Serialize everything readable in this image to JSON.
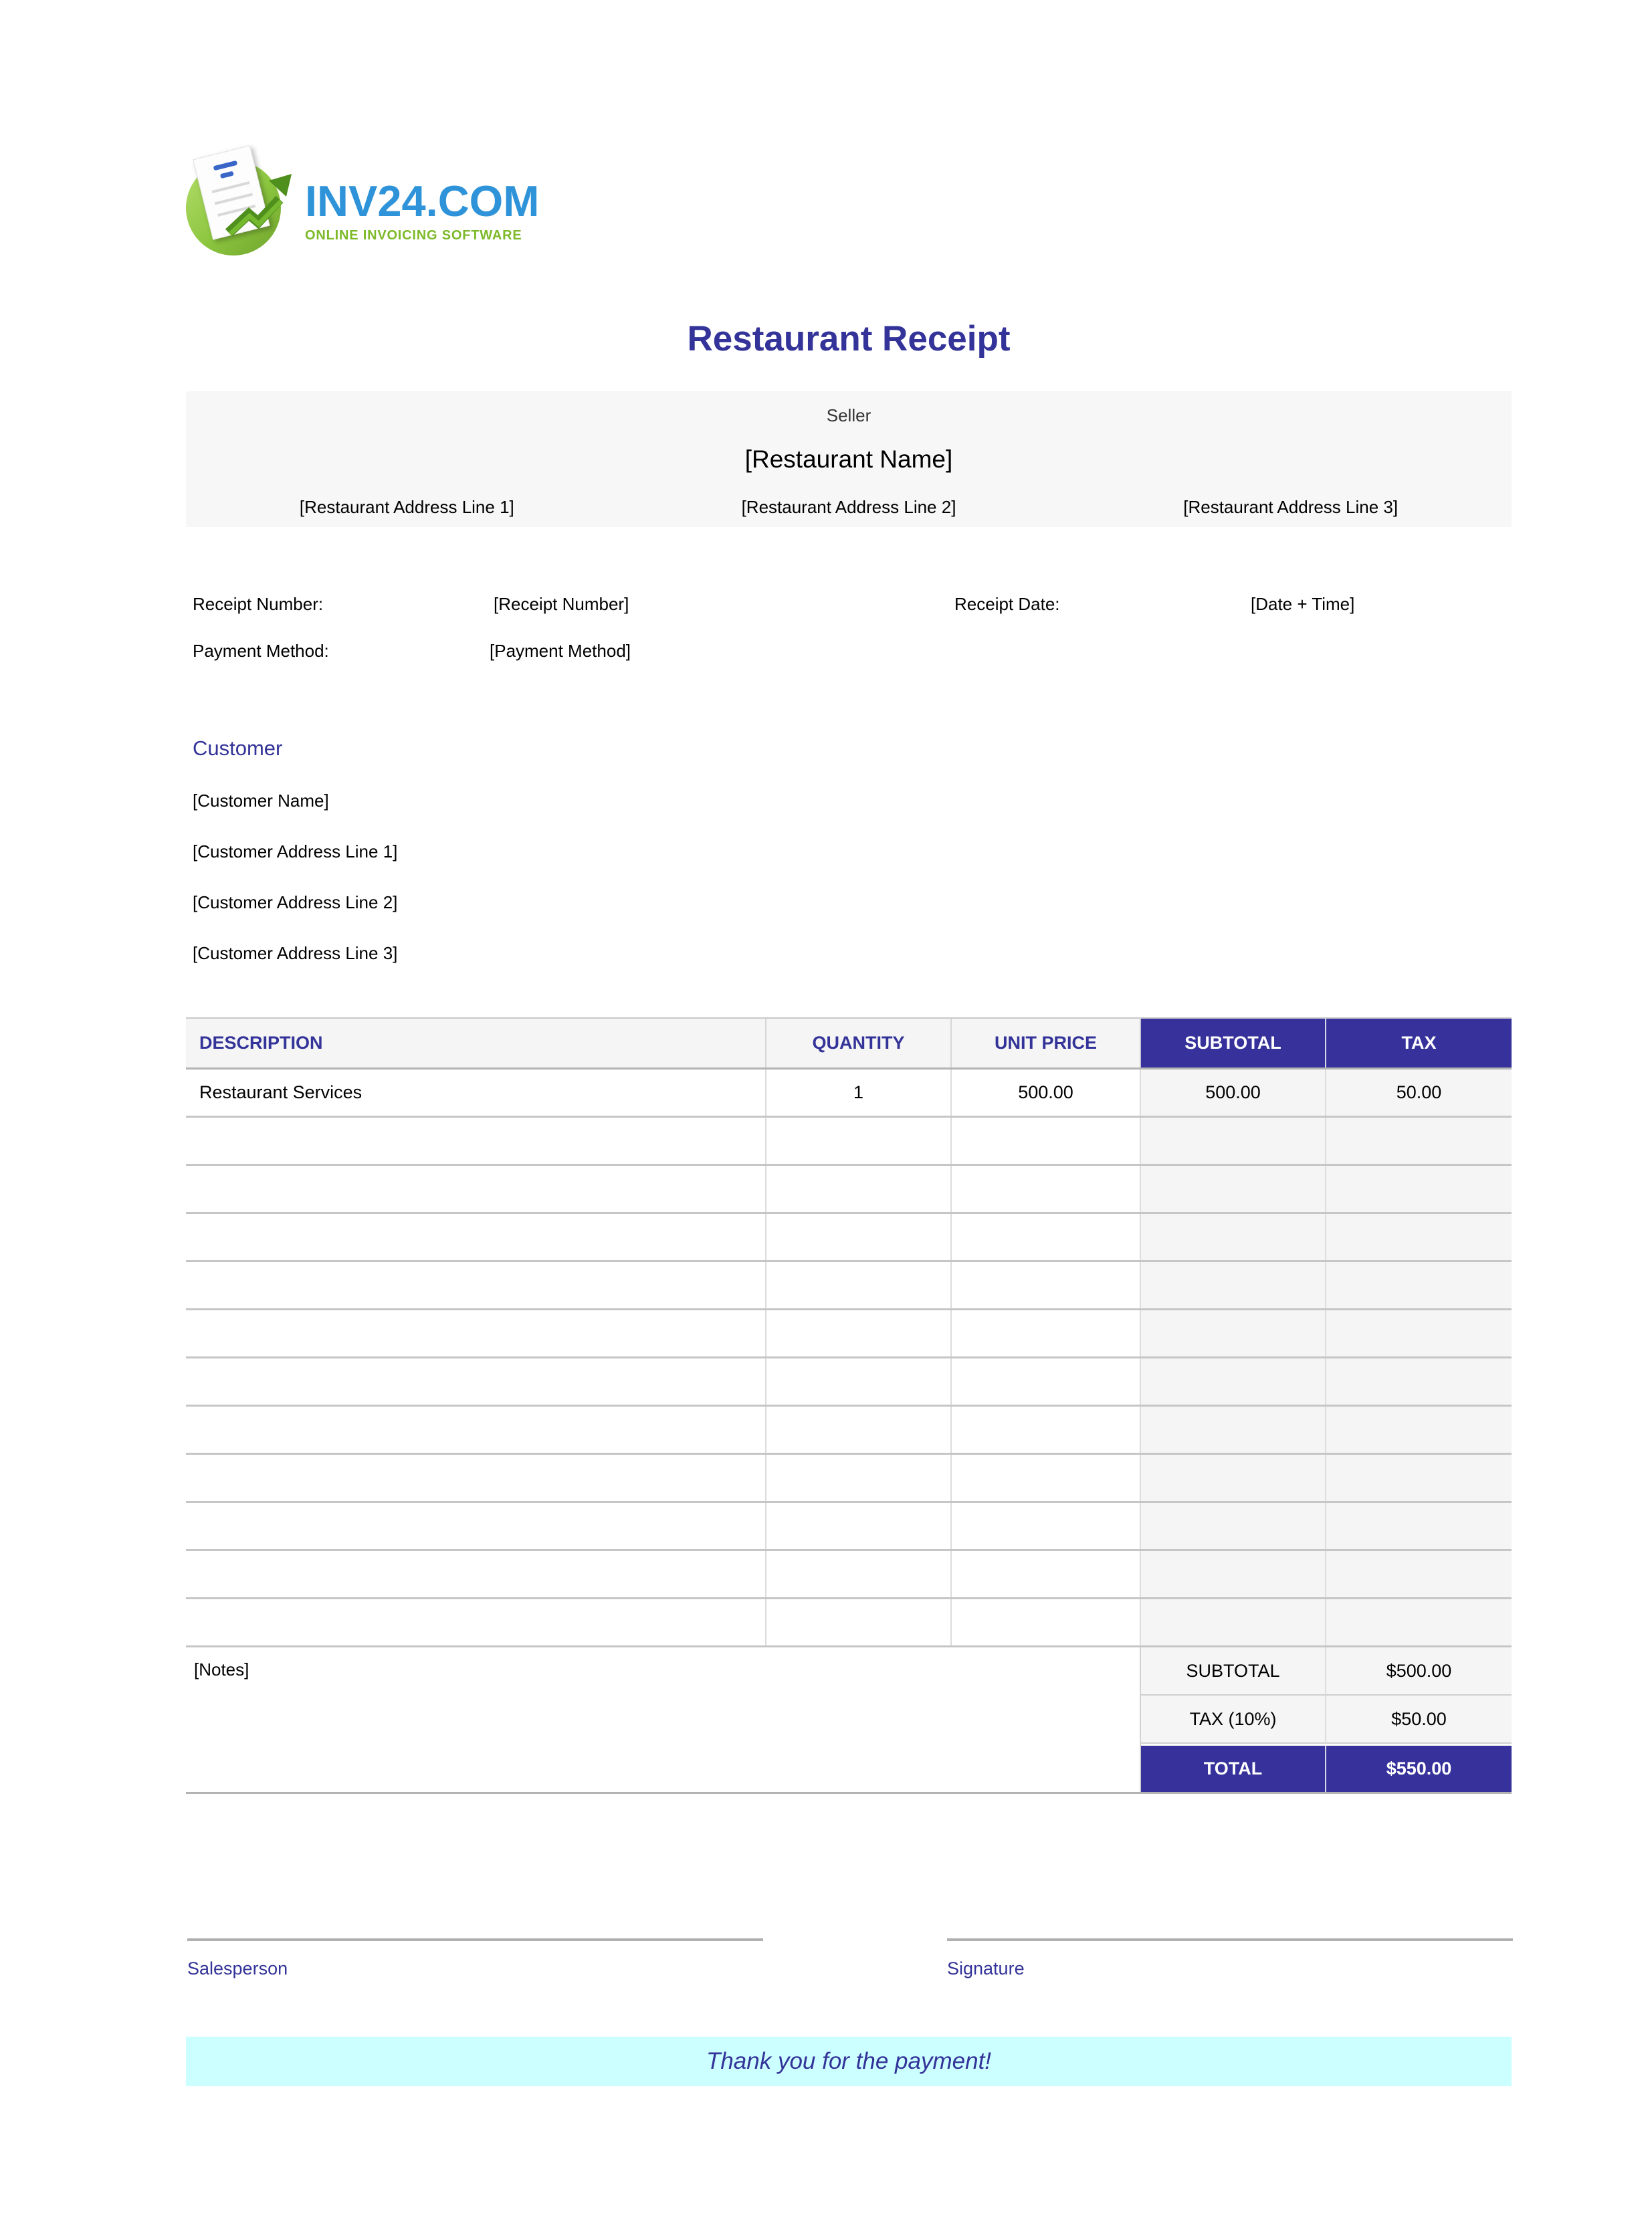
{
  "logo": {
    "brand": "INV24.COM",
    "tagline": "ONLINE INVOICING SOFTWARE",
    "brand_color": "#2E93D8",
    "tagline_color": "#7DB928"
  },
  "title": "Restaurant Receipt",
  "seller": {
    "label": "Seller",
    "name": "[Restaurant Name]",
    "address_lines": [
      "[Restaurant Address Line 1]",
      "[Restaurant Address Line 2]",
      "[Restaurant Address Line 3]"
    ]
  },
  "meta": {
    "receipt_number_label": "Receipt Number:",
    "receipt_number": "[Receipt Number]",
    "receipt_date_label": "Receipt Date:",
    "receipt_date": "[Date + Time]",
    "payment_method_label": "Payment Method:",
    "payment_method": "[Payment Method]"
  },
  "customer": {
    "heading": "Customer",
    "lines": [
      "[Customer Name]",
      "[Customer Address Line 1]",
      "[Customer Address Line 2]",
      "[Customer Address Line 3]"
    ]
  },
  "table": {
    "columns": [
      "DESCRIPTION",
      "QUANTITY",
      "UNIT PRICE",
      "SUBTOTAL",
      "TAX"
    ],
    "rows": [
      [
        "Restaurant Services",
        "1",
        "500.00",
        "500.00",
        "50.00"
      ],
      [
        "",
        "",
        "",
        "",
        ""
      ],
      [
        "",
        "",
        "",
        "",
        ""
      ],
      [
        "",
        "",
        "",
        "",
        ""
      ],
      [
        "",
        "",
        "",
        "",
        ""
      ],
      [
        "",
        "",
        "",
        "",
        ""
      ],
      [
        "",
        "",
        "",
        "",
        ""
      ],
      [
        "",
        "",
        "",
        "",
        ""
      ],
      [
        "",
        "",
        "",
        "",
        ""
      ],
      [
        "",
        "",
        "",
        "",
        ""
      ],
      [
        "",
        "",
        "",
        "",
        ""
      ],
      [
        "",
        "",
        "",
        "",
        ""
      ]
    ],
    "notes": "[Notes]",
    "totals": [
      {
        "label": "SUBTOTAL",
        "value": "$500.00"
      },
      {
        "label": "TAX (10%)",
        "value": "$50.00"
      },
      {
        "label": "TOTAL",
        "value": "$550.00"
      }
    ]
  },
  "signatures": [
    {
      "label": "Salesperson"
    },
    {
      "label": "Signature"
    }
  ],
  "footer": {
    "thank_you": "Thank you for the payment!"
  },
  "colors": {
    "accent_indigo": "#333399",
    "table_header_bg": "#37329B",
    "light_cell_bg": "#F5F5F5",
    "seller_box_bg": "#F7F7F7",
    "banner_bg": "#CCFFFF"
  }
}
